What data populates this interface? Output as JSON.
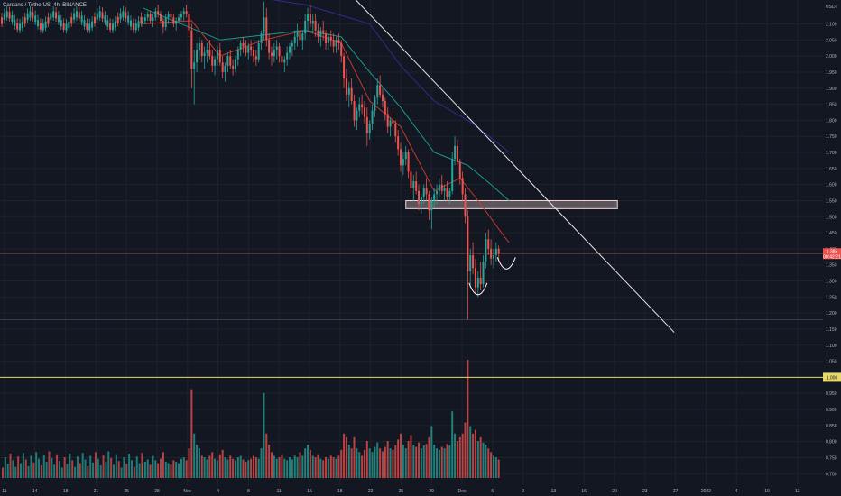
{
  "header": {
    "title": "Cardano / TetherUS, 4h, BINANCE"
  },
  "colors": {
    "background": "#131722",
    "bull": "#26a69a",
    "bear": "#ef5350",
    "ma_red": "#c0392b",
    "ma_teal": "#1a9a8a",
    "ma_navy": "#2a2e8c",
    "trendline": "#e8e8e8",
    "zone_fill": "#e8c8c8",
    "current_price_line": "#ef5350",
    "support_line": "#e6d86a"
  },
  "chart_data": {
    "type": "candlestick",
    "symbol": "Cardano / TetherUS",
    "timeframe": "4h",
    "exchange": "BINANCE",
    "currency": "USDT",
    "y_axis": {
      "ylim": [
        0.67,
        2.18
      ],
      "ticks": [
        "2.100",
        "2.050",
        "2.000",
        "1.950",
        "1.900",
        "1.850",
        "1.800",
        "1.750",
        "1.700",
        "1.650",
        "1.600",
        "1.550",
        "1.500",
        "1.450",
        "1.400",
        "1.350",
        "1.300",
        "1.250",
        "1.200",
        "1.150",
        "1.100",
        "1.050",
        "1.000",
        "0.950",
        "0.900",
        "0.850",
        "0.800",
        "0.750",
        "0.700"
      ],
      "unit": "USDT"
    },
    "x_axis": {
      "ticks": [
        "11",
        "14",
        "18",
        "21",
        "25",
        "28",
        "Nov",
        "4",
        "8",
        "11",
        "15",
        "18",
        "22",
        "25",
        "29",
        "Dec",
        "6",
        "9",
        "13",
        "16",
        "20",
        "23",
        "27",
        "2022",
        "4",
        "10",
        "13"
      ]
    },
    "price_labels": {
      "current": "1.385",
      "current_time": "00:42:21",
      "support": "1.000"
    },
    "candles": [
      [
        2.1,
        2.12,
        2.09,
        2.11
      ],
      [
        2.11,
        2.13,
        2.1,
        2.12
      ],
      [
        2.12,
        2.14,
        2.11,
        2.13
      ],
      [
        2.13,
        2.14,
        2.1,
        2.11
      ],
      [
        2.11,
        2.13,
        2.09,
        2.12
      ],
      [
        2.12,
        2.15,
        2.11,
        2.14
      ],
      [
        2.14,
        2.16,
        2.12,
        2.13
      ],
      [
        2.13,
        2.14,
        2.1,
        2.11
      ],
      [
        2.11,
        2.12,
        2.07,
        2.09
      ],
      [
        2.09,
        2.13,
        2.08,
        2.12
      ],
      [
        2.12,
        2.14,
        2.1,
        2.13
      ],
      [
        2.13,
        2.15,
        2.11,
        2.12
      ],
      [
        2.12,
        2.13,
        2.09,
        2.1
      ],
      [
        2.1,
        2.12,
        2.08,
        2.11
      ],
      [
        2.11,
        2.13,
        2.1,
        2.12
      ],
      [
        2.12,
        2.14,
        2.11,
        2.13
      ],
      [
        2.13,
        2.15,
        2.11,
        2.14
      ],
      [
        2.14,
        2.16,
        2.12,
        2.13
      ],
      [
        2.13,
        2.14,
        2.06,
        2.08
      ],
      [
        2.08,
        2.1,
        1.9,
        1.96
      ],
      [
        1.96,
        2.02,
        1.85,
        1.98
      ],
      [
        1.98,
        2.04,
        1.95,
        2.02
      ],
      [
        2.02,
        2.06,
        1.99,
        2.04
      ],
      [
        2.04,
        2.05,
        1.98,
        2.0
      ],
      [
        2.0,
        2.03,
        1.96,
        2.01
      ],
      [
        2.01,
        2.04,
        1.98,
        2.02
      ],
      [
        2.02,
        2.05,
        1.99,
        2.0
      ],
      [
        2.0,
        2.02,
        1.95,
        1.97
      ],
      [
        1.97,
        2.0,
        1.94,
        1.99
      ],
      [
        1.99,
        2.03,
        1.97,
        2.02
      ],
      [
        2.02,
        2.04,
        1.97,
        1.98
      ],
      [
        1.98,
        2.0,
        1.93,
        1.95
      ],
      [
        1.95,
        1.98,
        1.92,
        1.97
      ],
      [
        1.97,
        2.01,
        1.95,
        2.0
      ],
      [
        2.0,
        2.02,
        1.96,
        1.97
      ],
      [
        1.97,
        1.99,
        1.94,
        1.96
      ],
      [
        1.96,
        2.0,
        1.95,
        1.99
      ],
      [
        1.99,
        2.03,
        1.97,
        2.02
      ],
      [
        2.02,
        2.05,
        2.0,
        2.04
      ],
      [
        2.04,
        2.06,
        2.01,
        2.03
      ],
      [
        2.03,
        2.05,
        2.0,
        2.01
      ],
      [
        2.01,
        2.04,
        1.99,
        2.03
      ],
      [
        2.03,
        2.05,
        2.0,
        2.02
      ],
      [
        2.02,
        2.03,
        1.98,
        2.0
      ],
      [
        2.0,
        2.02,
        1.97,
        1.99
      ],
      [
        1.99,
        2.05,
        1.98,
        2.04
      ],
      [
        2.04,
        2.08,
        2.02,
        2.07
      ],
      [
        2.07,
        2.17,
        2.05,
        2.12
      ],
      [
        2.12,
        2.15,
        2.03,
        2.05
      ],
      [
        2.05,
        2.07,
        1.99,
        2.01
      ],
      [
        2.01,
        2.03,
        1.97,
        2.0
      ],
      [
        2.0,
        2.04,
        1.98,
        2.02
      ],
      [
        2.02,
        2.05,
        1.99,
        2.03
      ],
      [
        2.03,
        2.04,
        1.98,
        2.0
      ],
      [
        2.0,
        2.02,
        1.96,
        1.98
      ],
      [
        1.98,
        2.0,
        1.95,
        1.99
      ],
      [
        1.99,
        2.03,
        1.97,
        2.01
      ],
      [
        2.01,
        2.04,
        1.99,
        2.03
      ],
      [
        2.03,
        2.05,
        2.0,
        2.04
      ],
      [
        2.04,
        2.08,
        2.02,
        2.06
      ],
      [
        2.06,
        2.1,
        2.03,
        2.08
      ],
      [
        2.08,
        2.11,
        2.04,
        2.05
      ],
      [
        2.05,
        2.08,
        2.02,
        2.07
      ],
      [
        2.07,
        2.13,
        2.05,
        2.11
      ],
      [
        2.11,
        2.15,
        2.08,
        2.13
      ],
      [
        2.13,
        2.16,
        2.09,
        2.1
      ],
      [
        2.1,
        2.13,
        2.07,
        2.11
      ],
      [
        2.11,
        2.13,
        2.06,
        2.08
      ],
      [
        2.08,
        2.1,
        2.04,
        2.06
      ],
      [
        2.06,
        2.09,
        2.03,
        2.08
      ],
      [
        2.08,
        2.11,
        2.05,
        2.07
      ],
      [
        2.07,
        2.08,
        2.02,
        2.04
      ],
      [
        2.04,
        2.07,
        2.02,
        2.06
      ],
      [
        2.06,
        2.08,
        2.03,
        2.05
      ],
      [
        2.05,
        2.07,
        2.01,
        2.03
      ],
      [
        2.03,
        2.06,
        2.01,
        2.05
      ],
      [
        2.05,
        2.07,
        2.02,
        2.04
      ],
      [
        2.04,
        2.05,
        1.98,
        2.0
      ],
      [
        2.0,
        2.01,
        1.9,
        1.93
      ],
      [
        1.93,
        1.96,
        1.86,
        1.88
      ],
      [
        1.88,
        1.92,
        1.84,
        1.9
      ],
      [
        1.9,
        1.93,
        1.85,
        1.86
      ],
      [
        1.86,
        1.88,
        1.78,
        1.8
      ],
      [
        1.8,
        1.84,
        1.77,
        1.83
      ],
      [
        1.83,
        1.87,
        1.81,
        1.85
      ],
      [
        1.85,
        1.88,
        1.82,
        1.84
      ],
      [
        1.84,
        1.86,
        1.79,
        1.81
      ],
      [
        1.81,
        1.84,
        1.72,
        1.76
      ],
      [
        1.76,
        1.8,
        1.74,
        1.79
      ],
      [
        1.79,
        1.85,
        1.77,
        1.83
      ],
      [
        1.83,
        1.88,
        1.81,
        1.87
      ],
      [
        1.87,
        1.93,
        1.85,
        1.91
      ],
      [
        1.91,
        1.94,
        1.87,
        1.88
      ],
      [
        1.88,
        1.9,
        1.84,
        1.86
      ],
      [
        1.86,
        1.87,
        1.8,
        1.82
      ],
      [
        1.82,
        1.84,
        1.76,
        1.78
      ],
      [
        1.78,
        1.81,
        1.75,
        1.8
      ],
      [
        1.8,
        1.83,
        1.77,
        1.79
      ],
      [
        1.79,
        1.8,
        1.73,
        1.75
      ],
      [
        1.75,
        1.77,
        1.69,
        1.71
      ],
      [
        1.71,
        1.73,
        1.64,
        1.66
      ],
      [
        1.66,
        1.7,
        1.63,
        1.68
      ],
      [
        1.68,
        1.72,
        1.66,
        1.7
      ],
      [
        1.7,
        1.71,
        1.62,
        1.64
      ],
      [
        1.64,
        1.66,
        1.57,
        1.59
      ],
      [
        1.59,
        1.63,
        1.55,
        1.61
      ],
      [
        1.61,
        1.64,
        1.57,
        1.58
      ],
      [
        1.58,
        1.6,
        1.52,
        1.54
      ],
      [
        1.54,
        1.57,
        1.51,
        1.56
      ],
      [
        1.56,
        1.6,
        1.54,
        1.59
      ],
      [
        1.59,
        1.62,
        1.55,
        1.57
      ],
      [
        1.57,
        1.58,
        1.49,
        1.52
      ],
      [
        1.52,
        1.56,
        1.46,
        1.55
      ],
      [
        1.55,
        1.59,
        1.53,
        1.57
      ],
      [
        1.57,
        1.6,
        1.54,
        1.58
      ],
      [
        1.58,
        1.62,
        1.56,
        1.6
      ],
      [
        1.6,
        1.63,
        1.57,
        1.58
      ],
      [
        1.58,
        1.6,
        1.55,
        1.59
      ],
      [
        1.59,
        1.61,
        1.55,
        1.56
      ],
      [
        1.56,
        1.59,
        1.54,
        1.58
      ],
      [
        1.58,
        1.7,
        1.57,
        1.68
      ],
      [
        1.68,
        1.75,
        1.66,
        1.72
      ],
      [
        1.72,
        1.74,
        1.66,
        1.67
      ],
      [
        1.67,
        1.68,
        1.6,
        1.62
      ],
      [
        1.62,
        1.64,
        1.55,
        1.57
      ],
      [
        1.57,
        1.59,
        1.48,
        1.5
      ],
      [
        1.5,
        1.52,
        1.18,
        1.33
      ],
      [
        1.33,
        1.4,
        1.28,
        1.38
      ],
      [
        1.38,
        1.42,
        1.32,
        1.34
      ],
      [
        1.34,
        1.37,
        1.26,
        1.28
      ],
      [
        1.28,
        1.33,
        1.25,
        1.31
      ],
      [
        1.31,
        1.36,
        1.27,
        1.29
      ],
      [
        1.29,
        1.38,
        1.28,
        1.36
      ],
      [
        1.36,
        1.45,
        1.34,
        1.43
      ],
      [
        1.43,
        1.46,
        1.38,
        1.4
      ],
      [
        1.4,
        1.43,
        1.35,
        1.37
      ],
      [
        1.37,
        1.4,
        1.34,
        1.38
      ],
      [
        1.38,
        1.42,
        1.36,
        1.4
      ],
      [
        1.4,
        1.41,
        1.36,
        1.385
      ]
    ],
    "volume": [
      20,
      22,
      25,
      18,
      30,
      24,
      20,
      26,
      35,
      22,
      20,
      18,
      24,
      22,
      20,
      26,
      28,
      24,
      40,
      120,
      60,
      45,
      40,
      30,
      28,
      25,
      30,
      35,
      26,
      24,
      32,
      38,
      28,
      25,
      30,
      26,
      24,
      28,
      30,
      25,
      22,
      24,
      26,
      30,
      28,
      26,
      40,
      115,
      60,
      45,
      35,
      30,
      26,
      28,
      32,
      26,
      24,
      28,
      25,
      30,
      28,
      35,
      30,
      40,
      45,
      38,
      30,
      28,
      32,
      26,
      24,
      28,
      26,
      30,
      28,
      26,
      30,
      38,
      60,
      55,
      45,
      40,
      55,
      40,
      35,
      30,
      38,
      50,
      40,
      35,
      42,
      48,
      40,
      36,
      42,
      50,
      40,
      38,
      44,
      52,
      60,
      45,
      40,
      50,
      58,
      45,
      42,
      48,
      40,
      44,
      46,
      55,
      70,
      45,
      40,
      38,
      42,
      40,
      46,
      44,
      90,
      60,
      50,
      55,
      60,
      75,
      160,
      70,
      60,
      65,
      50,
      55,
      48,
      45,
      40,
      35,
      30,
      28,
      25
    ],
    "moving_averages": [
      {
        "color": "red",
        "points": [
          [
            0,
            2.1
          ],
          [
            19,
            2.11
          ],
          [
            30,
            2.0
          ],
          [
            47,
            2.05
          ],
          [
            63,
            2.08
          ],
          [
            77,
            2.04
          ],
          [
            88,
            1.86
          ],
          [
            100,
            1.78
          ],
          [
            113,
            1.58
          ],
          [
            123,
            1.62
          ],
          [
            130,
            1.55
          ],
          [
            140,
            1.44
          ],
          [
            142,
            1.42
          ]
        ]
      },
      {
        "color": "teal",
        "points": [
          [
            0,
            2.15
          ],
          [
            30,
            2.05
          ],
          [
            63,
            2.08
          ],
          [
            77,
            2.06
          ],
          [
            88,
            1.95
          ],
          [
            100,
            1.84
          ],
          [
            113,
            1.7
          ],
          [
            126,
            1.66
          ],
          [
            135,
            1.6
          ],
          [
            142,
            1.55
          ]
        ]
      },
      {
        "color": "navy",
        "points": [
          [
            30,
            2.2
          ],
          [
            63,
            2.16
          ],
          [
            88,
            2.1
          ],
          [
            100,
            1.97
          ],
          [
            113,
            1.86
          ],
          [
            126,
            1.8
          ],
          [
            136,
            1.74
          ],
          [
            142,
            1.7
          ]
        ]
      }
    ],
    "trendline": {
      "start": [
        82,
        2.18
      ],
      "end": [
        206,
        1.14
      ]
    },
    "resistance_zone": {
      "from_index": 102,
      "to_index": 184,
      "low": 1.525,
      "high": 1.55
    },
    "current_price_line": 1.385,
    "support_line": 1.0,
    "secondary_line": 1.18,
    "annotations": [
      {
        "type": "arc",
        "x_index": 130,
        "y": 1.26
      },
      {
        "type": "arc",
        "x_index": 141,
        "y": 1.34
      }
    ],
    "grid": true
  }
}
